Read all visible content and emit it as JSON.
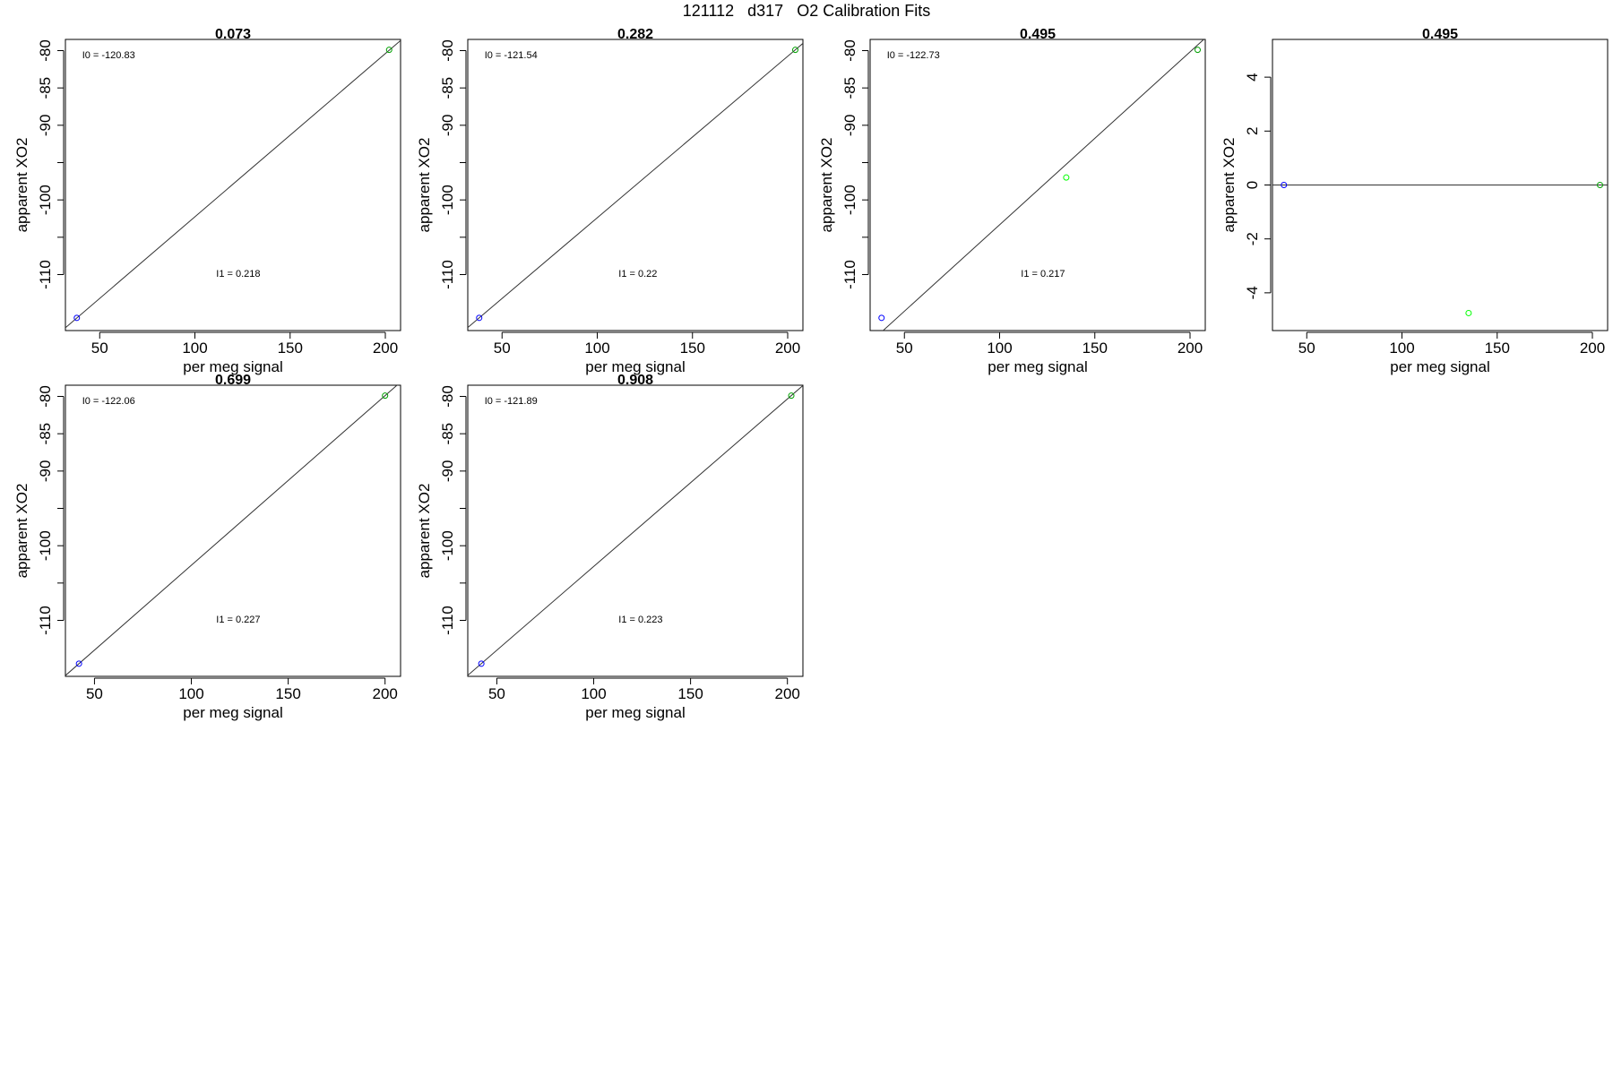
{
  "figure": {
    "title": "121112   d317   O2 Calibration Fits"
  },
  "colors": {
    "axis": "#000000",
    "fit_line": "#333333",
    "point_low": "#0000ff",
    "point_mid": "#00ff00",
    "point_high": "#00a000"
  },
  "chart_data": [
    {
      "type": "scatter",
      "title": "0.073",
      "xlabel": "per meg signal",
      "ylabel": "apparent XO2",
      "xlim": [
        32,
        208
      ],
      "ylim": [
        -117.5,
        -78.5
      ],
      "xticks": [
        50,
        100,
        150,
        200
      ],
      "yticks": [
        -110,
        -100,
        -90,
        -85,
        -80
      ],
      "yticks_unlabeled": [
        -105,
        -95
      ],
      "series": [
        {
          "x": [
            38,
            202
          ],
          "y": [
            -115.8,
            -79.9
          ],
          "colors": [
            "#0000ff",
            "#00a000"
          ]
        }
      ],
      "fit": {
        "intercept": -124.12,
        "slope": 0.2186
      },
      "annotations": [
        {
          "text": "I0 =  -120.83",
          "ax": 0.05,
          "ay": 0.065
        },
        {
          "text": "I1 =  0.218",
          "ax": 0.45,
          "ay": 0.815
        }
      ]
    },
    {
      "type": "scatter",
      "title": "0.282",
      "xlabel": "per meg signal",
      "ylabel": "apparent XO2",
      "xlim": [
        32,
        208
      ],
      "ylim": [
        -117.5,
        -78.5
      ],
      "xticks": [
        50,
        100,
        150,
        200
      ],
      "yticks": [
        -110,
        -100,
        -90,
        -85,
        -80
      ],
      "yticks_unlabeled": [
        -105,
        -95
      ],
      "series": [
        {
          "x": [
            38,
            204
          ],
          "y": [
            -115.8,
            -79.9
          ],
          "colors": [
            "#0000ff",
            "#00a000"
          ]
        }
      ],
      "fit": {
        "intercept": -124.02,
        "slope": 0.2163
      },
      "annotations": [
        {
          "text": "I0 =  -121.54",
          "ax": 0.05,
          "ay": 0.065
        },
        {
          "text": "I1 =  0.22",
          "ax": 0.45,
          "ay": 0.815
        }
      ]
    },
    {
      "type": "scatter",
      "title": "0.495",
      "xlabel": "per meg signal",
      "ylabel": "apparent XO2",
      "xlim": [
        32,
        208
      ],
      "ylim": [
        -117.5,
        -78.5
      ],
      "xticks": [
        50,
        100,
        150,
        200
      ],
      "yticks": [
        -110,
        -100,
        -90,
        -85,
        -80
      ],
      "yticks_unlabeled": [
        -105,
        -95
      ],
      "series": [
        {
          "x": [
            38,
            135,
            204
          ],
          "y": [
            -115.8,
            -97.0,
            -79.9
          ],
          "colors": [
            "#0000ff",
            "#00ff00",
            "#00a000"
          ]
        }
      ],
      "fit": {
        "intercept": -126.49,
        "slope": 0.2316
      },
      "annotations": [
        {
          "text": "I0 =  -122.73",
          "ax": 0.05,
          "ay": 0.065
        },
        {
          "text": "I1 =  0.217",
          "ax": 0.45,
          "ay": 0.815
        }
      ]
    },
    {
      "type": "scatter",
      "title": "0.495",
      "xlabel": "per meg signal",
      "ylabel": "apparent XO2",
      "xlim": [
        32,
        208
      ],
      "ylim": [
        -5.4,
        5.4
      ],
      "xticks": [
        50,
        100,
        150,
        200
      ],
      "yticks": [
        -4,
        -2,
        0,
        2,
        4
      ],
      "yticks_unlabeled": [],
      "series": [
        {
          "x": [
            38,
            135,
            204
          ],
          "y": [
            0,
            -4.75,
            0
          ],
          "colors": [
            "#0000ff",
            "#00ff00",
            "#00a000"
          ]
        }
      ],
      "fit": {
        "intercept": 0,
        "slope": 0
      },
      "annotations": []
    },
    {
      "type": "scatter",
      "title": "0.699",
      "xlabel": "per meg signal",
      "ylabel": "apparent XO2",
      "xlim": [
        35,
        208
      ],
      "ylim": [
        -117.5,
        -78.5
      ],
      "xticks": [
        50,
        100,
        150,
        200
      ],
      "yticks": [
        -110,
        -100,
        -90,
        -85,
        -80
      ],
      "yticks_unlabeled": [
        -105,
        -95
      ],
      "series": [
        {
          "x": [
            42,
            200
          ],
          "y": [
            -115.8,
            -79.9
          ],
          "colors": [
            "#0000ff",
            "#00a000"
          ]
        }
      ],
      "fit": {
        "intercept": -125.34,
        "slope": 0.2272
      },
      "annotations": [
        {
          "text": "I0 =  -122.06",
          "ax": 0.05,
          "ay": 0.065
        },
        {
          "text": "I1 =  0.227",
          "ax": 0.45,
          "ay": 0.815
        }
      ]
    },
    {
      "type": "scatter",
      "title": "0.908",
      "xlabel": "per meg signal",
      "ylabel": "apparent XO2",
      "xlim": [
        35,
        208
      ],
      "ylim": [
        -117.5,
        -78.5
      ],
      "xticks": [
        50,
        100,
        150,
        200
      ],
      "yticks": [
        -110,
        -100,
        -90,
        -85,
        -80
      ],
      "yticks_unlabeled": [
        -105,
        -95
      ],
      "series": [
        {
          "x": [
            42,
            202
          ],
          "y": [
            -115.8,
            -79.9
          ],
          "colors": [
            "#0000ff",
            "#00a000"
          ]
        }
      ],
      "fit": {
        "intercept": -125.22,
        "slope": 0.2244
      },
      "annotations": [
        {
          "text": "I0 =  -121.89",
          "ax": 0.05,
          "ay": 0.065
        },
        {
          "text": "I1 =  0.223",
          "ax": 0.45,
          "ay": 0.815
        }
      ]
    }
  ]
}
